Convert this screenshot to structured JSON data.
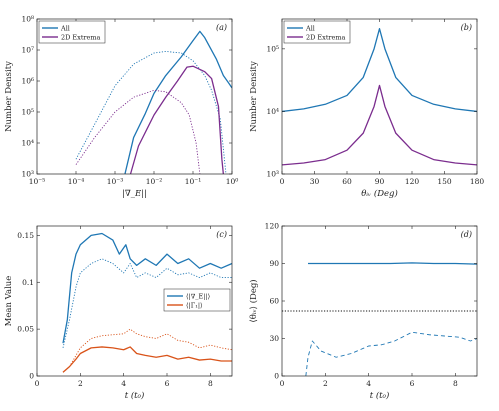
{
  "colors": {
    "blue": "#1f77b4",
    "purple": "#7b2d8e",
    "orange": "#d95319",
    "black": "#111111"
  },
  "chart_data": [
    {
      "panel": "(a)",
      "type": "line",
      "xscale": "log",
      "yscale": "log",
      "xlim": [
        1e-05,
        1
      ],
      "ylim": [
        1000,
        100000000.0
      ],
      "xticks": [
        "10⁻⁵",
        "10⁻⁴",
        "10⁻³",
        "10⁻²",
        "10⁻¹",
        "10⁰"
      ],
      "yticks": [
        "10³",
        "10⁴",
        "10⁵",
        "10⁶",
        "10⁷",
        "10⁸"
      ],
      "xlabel": "|∇_E||",
      "ylabel": "Number Density",
      "legend": [
        "All",
        "2D Extrema"
      ],
      "legend_position": "top-left",
      "series": [
        {
          "name": "All",
          "color": "blue",
          "style": "solid",
          "points": [
            [
              0.0018,
              1000
            ],
            [
              0.003,
              15000
            ],
            [
              0.006,
              90000
            ],
            [
              0.01,
              400000
            ],
            [
              0.02,
              1500000
            ],
            [
              0.05,
              6000000
            ],
            [
              0.1,
              20000000
            ],
            [
              0.15,
              40000000
            ],
            [
              0.2,
              25000000
            ],
            [
              0.4,
              5000000
            ],
            [
              0.6,
              1500000
            ],
            [
              0.8,
              900000
            ],
            [
              1,
              600000
            ]
          ]
        },
        {
          "name": "All (dotted)",
          "color": "blue",
          "style": "dotted",
          "points": [
            [
              0.0001,
              3000
            ],
            [
              0.0003,
              40000
            ],
            [
              0.001,
              700000
            ],
            [
              0.003,
              3500000
            ],
            [
              0.01,
              8000000
            ],
            [
              0.02,
              9000000
            ],
            [
              0.05,
              8000000
            ],
            [
              0.1,
              4500000
            ],
            [
              0.2,
              1500000
            ],
            [
              0.3,
              500000
            ],
            [
              0.5,
              60000
            ],
            [
              0.7,
              1000
            ]
          ]
        },
        {
          "name": "2D Extrema",
          "color": "purple",
          "style": "solid",
          "points": [
            [
              0.0025,
              1000
            ],
            [
              0.004,
              8000
            ],
            [
              0.01,
              80000
            ],
            [
              0.02,
              300000
            ],
            [
              0.04,
              1000000
            ],
            [
              0.07,
              2800000
            ],
            [
              0.1,
              3000000
            ],
            [
              0.2,
              2000000
            ],
            [
              0.3,
              1200000
            ],
            [
              0.45,
              150000
            ],
            [
              0.55,
              3000
            ],
            [
              0.6,
              1000
            ]
          ]
        },
        {
          "name": "2D Extrema (dotted)",
          "color": "purple",
          "style": "dotted",
          "points": [
            [
              0.0001,
              2000
            ],
            [
              0.0003,
              15000
            ],
            [
              0.001,
              100000
            ],
            [
              0.003,
              300000
            ],
            [
              0.01,
              500000
            ],
            [
              0.02,
              450000
            ],
            [
              0.05,
              200000
            ],
            [
              0.08,
              80000
            ],
            [
              0.12,
              10000
            ],
            [
              0.15,
              1000
            ]
          ]
        }
      ]
    },
    {
      "panel": "(b)",
      "type": "line",
      "yscale": "log",
      "xlim": [
        0,
        180
      ],
      "ylim": [
        1000,
        300000
      ],
      "xticks": [
        "0",
        "30",
        "60",
        "90",
        "120",
        "150",
        "180"
      ],
      "yticks": [
        "10³",
        "10⁴",
        "10⁵"
      ],
      "xlabel": "θᵢᵥ (Deg)",
      "ylabel": "Number Density",
      "legend": [
        "All",
        "2D Extrema"
      ],
      "legend_position": "top-left",
      "series": [
        {
          "name": "All",
          "color": "blue",
          "style": "solid",
          "points": [
            [
              0,
              10000
            ],
            [
              20,
              11000
            ],
            [
              40,
              13000
            ],
            [
              60,
              18000
            ],
            [
              75,
              35000
            ],
            [
              85,
              100000
            ],
            [
              90,
              210000
            ],
            [
              95,
              100000
            ],
            [
              105,
              35000
            ],
            [
              120,
              18000
            ],
            [
              140,
              13000
            ],
            [
              160,
              11000
            ],
            [
              180,
              10000
            ]
          ]
        },
        {
          "name": "2D Extrema",
          "color": "purple",
          "style": "solid",
          "points": [
            [
              0,
              1400
            ],
            [
              20,
              1500
            ],
            [
              40,
              1700
            ],
            [
              60,
              2400
            ],
            [
              75,
              4500
            ],
            [
              85,
              12000
            ],
            [
              90,
              26000
            ],
            [
              95,
              12000
            ],
            [
              105,
              4500
            ],
            [
              120,
              2400
            ],
            [
              140,
              1700
            ],
            [
              160,
              1500
            ],
            [
              180,
              1400
            ]
          ]
        }
      ]
    },
    {
      "panel": "(c)",
      "type": "line",
      "xlim": [
        0,
        9
      ],
      "ylim": [
        0,
        0.16
      ],
      "xticks": [
        "0",
        "2",
        "4",
        "6",
        "8"
      ],
      "yticks": [
        "0",
        "0.05",
        "0.1",
        "0.15"
      ],
      "xlabel": "t (t₀)",
      "ylabel": "Mean Value",
      "legend": [
        "⟨|∇_E||⟩",
        "⟨|Γ₁|⟩"
      ],
      "legend_position": "center-right",
      "series": [
        {
          "name": "⟨|∇_E||⟩",
          "color": "blue",
          "style": "solid",
          "points": [
            [
              1.2,
              0.035
            ],
            [
              1.4,
              0.06
            ],
            [
              1.6,
              0.11
            ],
            [
              1.8,
              0.13
            ],
            [
              2.0,
              0.14
            ],
            [
              2.5,
              0.15
            ],
            [
              3.0,
              0.152
            ],
            [
              3.5,
              0.145
            ],
            [
              3.8,
              0.13
            ],
            [
              4.1,
              0.14
            ],
            [
              4.3,
              0.125
            ],
            [
              4.6,
              0.118
            ],
            [
              5.0,
              0.125
            ],
            [
              5.5,
              0.118
            ],
            [
              6.0,
              0.13
            ],
            [
              6.5,
              0.12
            ],
            [
              7.0,
              0.125
            ],
            [
              7.5,
              0.115
            ],
            [
              8.0,
              0.12
            ],
            [
              8.5,
              0.115
            ],
            [
              9.0,
              0.12
            ]
          ]
        },
        {
          "name": "⟨|∇_E||⟩ (dotted)",
          "color": "blue",
          "style": "dotted",
          "points": [
            [
              1.2,
              0.03
            ],
            [
              1.5,
              0.06
            ],
            [
              1.8,
              0.095
            ],
            [
              2.0,
              0.11
            ],
            [
              2.5,
              0.12
            ],
            [
              3.0,
              0.125
            ],
            [
              3.5,
              0.12
            ],
            [
              4.0,
              0.11
            ],
            [
              4.3,
              0.12
            ],
            [
              4.6,
              0.105
            ],
            [
              5.0,
              0.11
            ],
            [
              5.5,
              0.105
            ],
            [
              6.0,
              0.115
            ],
            [
              6.5,
              0.108
            ],
            [
              7.0,
              0.11
            ],
            [
              7.5,
              0.105
            ],
            [
              8.0,
              0.11
            ],
            [
              8.5,
              0.105
            ],
            [
              9.0,
              0.105
            ]
          ]
        },
        {
          "name": "⟨|Γ₁|⟩",
          "color": "orange",
          "style": "solid",
          "points": [
            [
              1.2,
              0.004
            ],
            [
              1.5,
              0.01
            ],
            [
              1.8,
              0.018
            ],
            [
              2.0,
              0.024
            ],
            [
              2.5,
              0.03
            ],
            [
              3.0,
              0.031
            ],
            [
              3.5,
              0.03
            ],
            [
              4.0,
              0.028
            ],
            [
              4.3,
              0.031
            ],
            [
              4.6,
              0.024
            ],
            [
              5.0,
              0.022
            ],
            [
              5.5,
              0.02
            ],
            [
              6.0,
              0.022
            ],
            [
              6.5,
              0.018
            ],
            [
              7.0,
              0.02
            ],
            [
              7.5,
              0.017
            ],
            [
              8.0,
              0.018
            ],
            [
              8.5,
              0.016
            ],
            [
              9.0,
              0.016
            ]
          ]
        },
        {
          "name": "⟨|Γ₁|⟩ (dotted)",
          "color": "orange",
          "style": "dotted",
          "points": [
            [
              1.2,
              0.004
            ],
            [
              1.5,
              0.01
            ],
            [
              1.8,
              0.022
            ],
            [
              2.0,
              0.03
            ],
            [
              2.5,
              0.04
            ],
            [
              3.0,
              0.043
            ],
            [
              3.5,
              0.044
            ],
            [
              4.0,
              0.045
            ],
            [
              4.3,
              0.05
            ],
            [
              4.6,
              0.045
            ],
            [
              5.0,
              0.042
            ],
            [
              5.5,
              0.04
            ],
            [
              6.0,
              0.045
            ],
            [
              6.5,
              0.038
            ],
            [
              7.0,
              0.036
            ],
            [
              7.5,
              0.03
            ],
            [
              8.0,
              0.033
            ],
            [
              8.5,
              0.03
            ],
            [
              9.0,
              0.028
            ]
          ]
        }
      ]
    },
    {
      "panel": "(d)",
      "type": "line",
      "xlim": [
        0,
        9
      ],
      "ylim": [
        0,
        120
      ],
      "xticks": [
        "0",
        "2",
        "4",
        "6",
        "8"
      ],
      "yticks": [
        "0",
        "30",
        "60",
        "90",
        "120"
      ],
      "xlabel": "t (t₀)",
      "ylabel": "⟨θᵢᵥ⟩ (Deg)",
      "series": [
        {
          "name": "solid",
          "color": "blue",
          "style": "solid",
          "points": [
            [
              1.2,
              90
            ],
            [
              3,
              90
            ],
            [
              5,
              90
            ],
            [
              6,
              90.5
            ],
            [
              7,
              90
            ],
            [
              8,
              90
            ],
            [
              9,
              89.5
            ]
          ]
        },
        {
          "name": "dashed",
          "color": "blue",
          "style": "dashed",
          "points": [
            [
              1.1,
              0
            ],
            [
              1.2,
              15
            ],
            [
              1.4,
              28
            ],
            [
              1.8,
              20
            ],
            [
              2.5,
              15
            ],
            [
              3.2,
              18
            ],
            [
              4.0,
              24
            ],
            [
              4.6,
              25
            ],
            [
              5.2,
              28
            ],
            [
              6.0,
              35
            ],
            [
              6.8,
              33
            ],
            [
              7.5,
              32
            ],
            [
              8.2,
              31
            ],
            [
              8.7,
              28
            ],
            [
              9.0,
              30
            ]
          ]
        },
        {
          "name": "reference",
          "color": "black",
          "style": "dotted",
          "points": [
            [
              0,
              52
            ],
            [
              9,
              52
            ]
          ]
        }
      ]
    }
  ]
}
